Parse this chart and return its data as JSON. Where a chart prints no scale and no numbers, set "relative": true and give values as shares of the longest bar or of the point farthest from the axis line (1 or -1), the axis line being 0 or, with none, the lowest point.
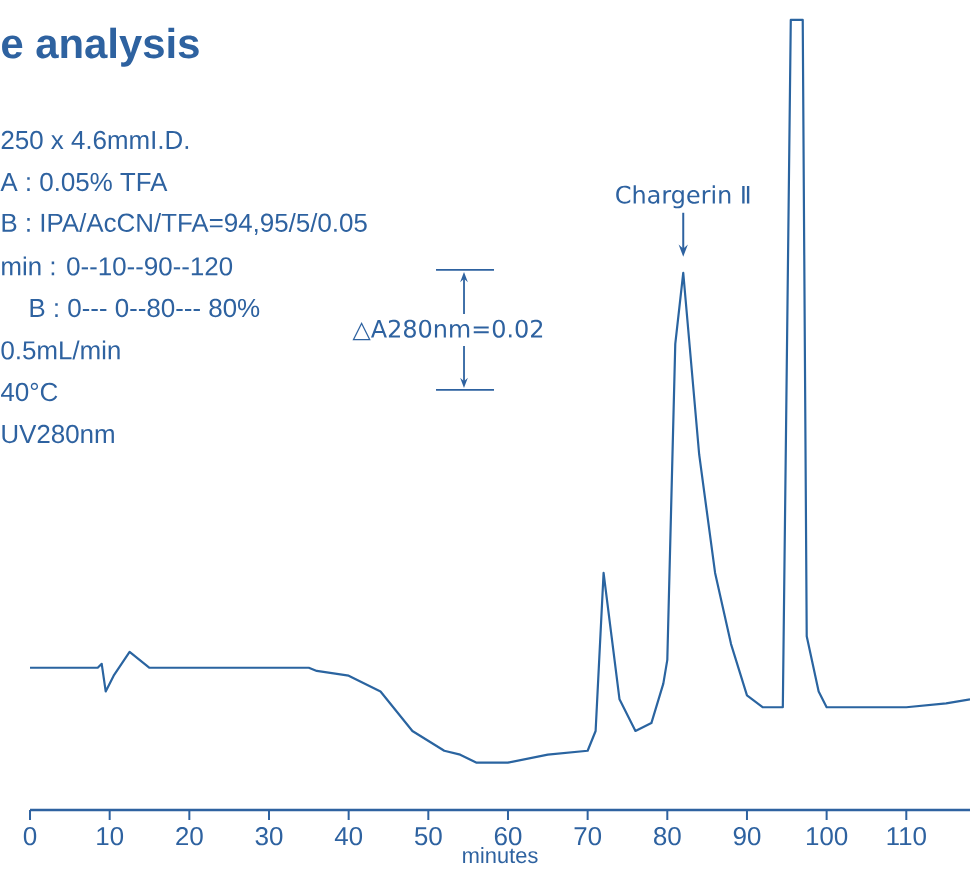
{
  "chart_data": {
    "type": "line",
    "title": "e analysis",
    "xlabel": "minutes",
    "relative": true,
    "xlim": [
      0,
      118
    ],
    "xticks": [
      0,
      10,
      20,
      30,
      40,
      50,
      60,
      70,
      80,
      90,
      100,
      110
    ],
    "series": [
      {
        "color": "#2a64a0",
        "x": [
          0,
          8.5,
          9,
          9.5,
          10.5,
          12.5,
          15,
          20,
          35,
          36,
          40,
          44,
          48,
          52,
          54,
          56,
          60,
          65,
          70,
          71,
          72,
          73,
          74,
          76,
          78,
          79.5,
          80,
          81,
          82,
          84,
          86,
          88,
          90,
          92,
          94.5,
          95.5,
          97,
          97.5,
          99,
          100,
          102,
          105,
          110,
          115,
          118
        ],
        "values": [
          0.18,
          0.18,
          0.185,
          0.15,
          0.17,
          0.2,
          0.18,
          0.18,
          0.18,
          0.176,
          0.17,
          0.15,
          0.1,
          0.075,
          0.07,
          0.06,
          0.06,
          0.07,
          0.075,
          0.1,
          0.3,
          0.22,
          0.14,
          0.1,
          0.11,
          0.16,
          0.19,
          0.59,
          0.68,
          0.45,
          0.3,
          0.21,
          0.145,
          0.13,
          0.13,
          1.0,
          1.0,
          0.22,
          0.15,
          0.13,
          0.13,
          0.13,
          0.13,
          0.135,
          0.14
        ]
      }
    ],
    "annotations": [
      "250 x 4.6mmI.D.",
      "A : 0.05% TFA",
      "B : IPA/AcCN/TFA=94,95/5/0.05",
      "min : 0--10--90--120",
      "B : 0--- 0--80--- 80%",
      "0.5mL/min",
      "40°C",
      "UV280nm",
      "△A280nm=0.02",
      {
        "text": "Chargerin Ⅱ",
        "x": 82,
        "y": 0.68
      }
    ]
  }
}
